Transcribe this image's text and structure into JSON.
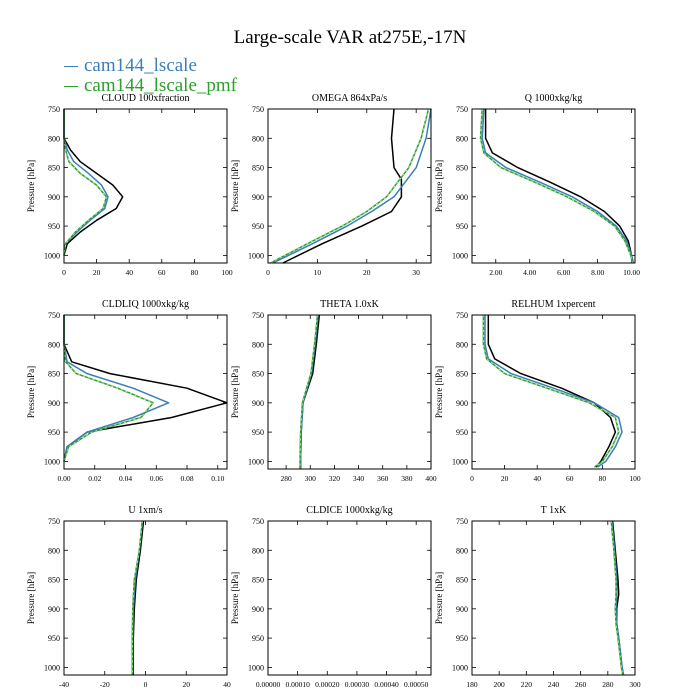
{
  "title": "Large-scale VAR at275E,-17N",
  "legend": [
    {
      "label": "cam144_lscale",
      "color": "#3a7fb8"
    },
    {
      "label": "cam144_lscale_pmf",
      "color": "#2ca02c"
    }
  ],
  "reference_line_color": "#000000",
  "chart_data": [
    {
      "type": "line",
      "title": "CLOUD  100xfraction",
      "ylabel": "Pressure [hPa]",
      "xlim": [
        0,
        100
      ],
      "ylim": [
        1013,
        750
      ],
      "y_inverted": true,
      "xticks": [
        0,
        20,
        40,
        60,
        80,
        100
      ],
      "xtick_labels": [
        "0",
        "20",
        "40",
        "60",
        "80",
        "100"
      ],
      "yticks": [
        750,
        800,
        850,
        900,
        950,
        1000
      ],
      "series": [
        {
          "role": "reference",
          "y": [
            750,
            800,
            820,
            840,
            860,
            880,
            900,
            920,
            940,
            960,
            980,
            1000
          ],
          "x": [
            0,
            0,
            4,
            10,
            20,
            30,
            36,
            32,
            20,
            10,
            2,
            0
          ]
        },
        {
          "role": "cam144_lscale",
          "y": [
            750,
            800,
            820,
            840,
            860,
            880,
            900,
            920,
            940,
            960,
            980,
            1000
          ],
          "x": [
            0,
            0,
            2,
            6,
            15,
            23,
            27,
            25,
            16,
            8,
            1,
            0
          ]
        },
        {
          "role": "cam144_lscale_pmf",
          "y": [
            750,
            800,
            820,
            840,
            860,
            880,
            900,
            920,
            940,
            960,
            980,
            1000
          ],
          "x": [
            0,
            0,
            1,
            3,
            10,
            20,
            26,
            24,
            15,
            7,
            1,
            0
          ]
        }
      ]
    },
    {
      "type": "line",
      "title": "OMEGA  864xPa/s",
      "ylabel": "Pressure [hPa]",
      "xlim": [
        0,
        33
      ],
      "ylim": [
        1013,
        750
      ],
      "y_inverted": true,
      "xticks": [
        0,
        10,
        20,
        30
      ],
      "xtick_labels": [
        "0",
        "10",
        "20",
        "30"
      ],
      "yticks": [
        750,
        800,
        850,
        900,
        950,
        1000
      ],
      "series": [
        {
          "role": "reference",
          "y": [
            750,
            800,
            850,
            870,
            900,
            925,
            950,
            980,
            1013
          ],
          "x": [
            25.5,
            25,
            25.5,
            27,
            27,
            25,
            19,
            11,
            3
          ]
        },
        {
          "role": "cam144_lscale",
          "y": [
            750,
            800,
            850,
            900,
            925,
            950,
            980,
            1013
          ],
          "x": [
            33,
            32,
            30,
            25.5,
            21,
            16,
            9,
            1
          ]
        },
        {
          "role": "cam144_lscale_pmf",
          "y": [
            750,
            800,
            850,
            900,
            925,
            950,
            980,
            1013
          ],
          "x": [
            32.5,
            31,
            28.5,
            24,
            20,
            15,
            8,
            0.5
          ]
        }
      ]
    },
    {
      "type": "line",
      "title": "Q  1000xkg/kg",
      "ylabel": "Pressure [hPa]",
      "xlim": [
        0.6,
        10.2
      ],
      "ylim": [
        1013,
        750
      ],
      "y_inverted": true,
      "xticks": [
        2,
        4,
        6,
        8,
        10
      ],
      "xtick_labels": [
        "2.00",
        "4.00",
        "6.00",
        "8.00",
        "10.00"
      ],
      "yticks": [
        750,
        800,
        850,
        900,
        950,
        1000
      ],
      "series": [
        {
          "role": "reference",
          "y": [
            750,
            800,
            825,
            850,
            875,
            900,
            925,
            950,
            975,
            1000,
            1013
          ],
          "x": [
            1.4,
            1.4,
            1.8,
            3.3,
            5.2,
            7.0,
            8.4,
            9.3,
            9.8,
            10.0,
            10.1
          ]
        },
        {
          "role": "cam144_lscale",
          "y": [
            750,
            800,
            825,
            850,
            875,
            900,
            925,
            950,
            975,
            1000,
            1013
          ],
          "x": [
            1.3,
            1.2,
            1.4,
            2.6,
            4.6,
            6.5,
            8.0,
            9.1,
            9.7,
            10.0,
            10.1
          ]
        },
        {
          "role": "cam144_lscale_pmf",
          "y": [
            750,
            800,
            825,
            850,
            875,
            900,
            925,
            950,
            975,
            1000,
            1013
          ],
          "x": [
            1.2,
            1.1,
            1.3,
            2.3,
            4.3,
            6.2,
            7.8,
            9.0,
            9.6,
            9.95,
            10.05
          ]
        }
      ]
    },
    {
      "type": "line",
      "title": "CLDLIQ  1000xkg/kg",
      "ylabel": "Pressure [hPa]",
      "xlim": [
        0,
        0.106
      ],
      "ylim": [
        1013,
        750
      ],
      "y_inverted": true,
      "xticks": [
        0,
        0.02,
        0.04,
        0.06,
        0.08,
        0.1
      ],
      "xtick_labels": [
        "0.00",
        "0.02",
        "0.04",
        "0.06",
        "0.08",
        "0.10"
      ],
      "yticks": [
        750,
        800,
        850,
        900,
        950,
        1000
      ],
      "series": [
        {
          "role": "reference",
          "y": [
            750,
            800,
            830,
            850,
            875,
            900,
            925,
            950,
            975,
            1000
          ],
          "x": [
            0,
            0,
            0.005,
            0.03,
            0.08,
            0.106,
            0.07,
            0.015,
            0.002,
            0
          ]
        },
        {
          "role": "cam144_lscale",
          "y": [
            750,
            800,
            830,
            850,
            875,
            900,
            925,
            950,
            975,
            1000
          ],
          "x": [
            0,
            0,
            0.002,
            0.015,
            0.045,
            0.068,
            0.045,
            0.015,
            0.002,
            0
          ]
        },
        {
          "role": "cam144_lscale_pmf",
          "y": [
            750,
            800,
            830,
            850,
            875,
            900,
            925,
            950,
            975,
            1000
          ],
          "x": [
            0,
            0,
            0.001,
            0.008,
            0.035,
            0.058,
            0.05,
            0.018,
            0.003,
            0
          ]
        }
      ]
    },
    {
      "type": "line",
      "title": "THETA  1.0xK",
      "ylabel": "Pressure [hPa]",
      "xlim": [
        265,
        400
      ],
      "ylim": [
        1013,
        750
      ],
      "y_inverted": true,
      "xticks": [
        280,
        300,
        320,
        340,
        360,
        380,
        400
      ],
      "xtick_labels": [
        "280",
        "300",
        "320",
        "340",
        "360",
        "380",
        "400"
      ],
      "yticks": [
        750,
        800,
        850,
        900,
        950,
        1000
      ],
      "series": [
        {
          "role": "reference",
          "y": [
            750,
            800,
            850,
            875,
            900,
            950,
            1000,
            1013
          ],
          "x": [
            307.5,
            305,
            302,
            298,
            294,
            292.5,
            292,
            292
          ]
        },
        {
          "role": "cam144_lscale",
          "y": [
            750,
            800,
            850,
            875,
            900,
            950,
            1000,
            1013
          ],
          "x": [
            306.5,
            304,
            301,
            297.5,
            294,
            292.5,
            292,
            292
          ]
        },
        {
          "role": "cam144_lscale_pmf",
          "y": [
            750,
            800,
            850,
            875,
            900,
            950,
            1000,
            1013
          ],
          "x": [
            306,
            303.5,
            300.5,
            297,
            293.5,
            292,
            291.5,
            291.5
          ]
        }
      ]
    },
    {
      "type": "line",
      "title": "RELHUM  1xpercent",
      "ylabel": "Pressure [hPa]",
      "xlim": [
        0,
        100
      ],
      "ylim": [
        1013,
        750
      ],
      "y_inverted": true,
      "xticks": [
        0,
        20,
        40,
        60,
        80,
        100
      ],
      "xtick_labels": [
        "0",
        "20",
        "40",
        "60",
        "80",
        "100"
      ],
      "yticks": [
        750,
        800,
        850,
        900,
        950,
        1000
      ],
      "series": [
        {
          "role": "reference",
          "y": [
            750,
            800,
            825,
            850,
            875,
            900,
            925,
            950,
            975,
            1000,
            1010
          ],
          "x": [
            10,
            10,
            14,
            30,
            55,
            75,
            85,
            88,
            84,
            79,
            76
          ]
        },
        {
          "role": "cam144_lscale",
          "y": [
            750,
            800,
            825,
            850,
            875,
            900,
            925,
            950,
            975,
            1000,
            1010
          ],
          "x": [
            8,
            8,
            10,
            24,
            50,
            75,
            90,
            92,
            88,
            82,
            77
          ]
        },
        {
          "role": "cam144_lscale_pmf",
          "y": [
            750,
            800,
            825,
            850,
            875,
            900,
            925,
            950,
            975,
            1000,
            1010
          ],
          "x": [
            7,
            7,
            9,
            20,
            46,
            72,
            88,
            90,
            86,
            80,
            75
          ]
        }
      ]
    },
    {
      "type": "line",
      "title": "U  1xm/s",
      "ylabel": "Pressure [hPa]",
      "xlim": [
        -40,
        40
      ],
      "ylim": [
        1013,
        750
      ],
      "y_inverted": true,
      "xticks": [
        -40,
        -20,
        0,
        20,
        40
      ],
      "xtick_labels": [
        "-40",
        "-20",
        "0",
        "20",
        "40"
      ],
      "yticks": [
        750,
        800,
        850,
        900,
        950,
        1000
      ],
      "series": [
        {
          "role": "reference",
          "y": [
            750,
            800,
            850,
            900,
            950,
            1000,
            1013
          ],
          "x": [
            -1,
            -2.5,
            -4.5,
            -5.5,
            -6,
            -6,
            -6
          ]
        },
        {
          "role": "cam144_lscale",
          "y": [
            750,
            800,
            850,
            900,
            950,
            1000,
            1013
          ],
          "x": [
            -1.5,
            -3,
            -5,
            -6,
            -6.3,
            -6.3,
            -6.3
          ]
        },
        {
          "role": "cam144_lscale_pmf",
          "y": [
            750,
            800,
            850,
            900,
            950,
            1000,
            1013
          ],
          "x": [
            -1.5,
            -3,
            -5.5,
            -6.3,
            -6.5,
            -6.5,
            -6.5
          ]
        }
      ]
    },
    {
      "type": "line",
      "title": "CLDICE  1000xkg/kg",
      "ylabel": "Pressure [hPa]",
      "xlim": [
        0,
        0.00055
      ],
      "ylim": [
        1013,
        750
      ],
      "y_inverted": true,
      "xticks": [
        0,
        0.0001,
        0.0002,
        0.0003,
        0.0004,
        0.0005
      ],
      "xtick_labels": [
        "0.00000",
        "0.00010",
        "0.00020",
        "0.00030",
        "0.00040",
        "0.00050"
      ],
      "yticks": [
        750,
        800,
        850,
        900,
        950,
        1000
      ],
      "series": []
    },
    {
      "type": "line",
      "title": "T  1xK",
      "ylabel": "Pressure [hPa]",
      "xlim": [
        180,
        300
      ],
      "ylim": [
        1013,
        750
      ],
      "y_inverted": true,
      "xticks": [
        180,
        200,
        220,
        240,
        260,
        280,
        300
      ],
      "xtick_labels": [
        "180",
        "200",
        "220",
        "240",
        "260",
        "280",
        "300"
      ],
      "yticks": [
        750,
        800,
        850,
        900,
        950,
        1000
      ],
      "series": [
        {
          "role": "reference",
          "y": [
            750,
            800,
            850,
            875,
            900,
            925,
            950,
            1000,
            1013
          ],
          "x": [
            283.5,
            285.5,
            287.5,
            288,
            286.5,
            286.5,
            288,
            290.5,
            291.5
          ]
        },
        {
          "role": "cam144_lscale",
          "y": [
            750,
            800,
            850,
            875,
            900,
            925,
            950,
            1000,
            1013
          ],
          "x": [
            283,
            285,
            286.5,
            286.5,
            286,
            286.5,
            288,
            290.5,
            291.5
          ]
        },
        {
          "role": "cam144_lscale_pmf",
          "y": [
            750,
            800,
            850,
            875,
            900,
            925,
            950,
            1000,
            1013
          ],
          "x": [
            282.5,
            284.5,
            286,
            286,
            285.5,
            286,
            287.5,
            290,
            291
          ]
        }
      ]
    }
  ]
}
